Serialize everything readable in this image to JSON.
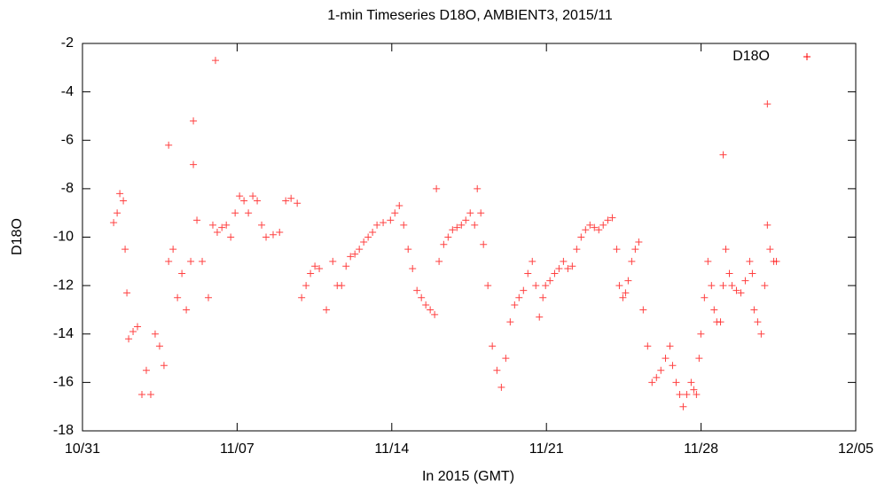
{
  "chart_data": {
    "type": "scatter",
    "title": "1-min Timeseries D18O, AMBIENT3, 2015/11",
    "x_label": "In 2015 (GMT)",
    "y_label": "D18O",
    "xlim": [
      0,
      35
    ],
    "xticks": [
      {
        "value": 0,
        "label": "10/31"
      },
      {
        "value": 7,
        "label": "11/07"
      },
      {
        "value": 14,
        "label": "11/14"
      },
      {
        "value": 21,
        "label": "11/21"
      },
      {
        "value": 28,
        "label": "11/28"
      },
      {
        "value": 35,
        "label": "12/05"
      }
    ],
    "ylim": [
      -18,
      -2
    ],
    "yticks": [
      -18,
      -16,
      -14,
      -12,
      -10,
      -8,
      -6,
      -4,
      -2
    ],
    "grid": false,
    "legend": "top-right",
    "series": [
      {
        "name": "D18O",
        "color": "#ff0000",
        "x": [
          1.41,
          1.57,
          1.69,
          1.85,
          1.93,
          2.01,
          2.09,
          2.29,
          2.49,
          2.69,
          2.89,
          3.09,
          3.29,
          3.49,
          3.69,
          3.9,
          4.1,
          4.3,
          4.5,
          4.7,
          4.9,
          5.02,
          5.18,
          5.42,
          5.7,
          5.9,
          6.1,
          6.31,
          6.51,
          6.71,
          6.91,
          7.11,
          7.31,
          7.51,
          7.71,
          7.91,
          8.11,
          8.31,
          8.63,
          8.92,
          9.2,
          9.44,
          9.72,
          9.92,
          10.12,
          10.32,
          10.52,
          10.72,
          11.04,
          11.33,
          11.53,
          11.73,
          11.93,
          12.13,
          12.33,
          12.53,
          12.73,
          12.93,
          13.13,
          13.33,
          13.61,
          13.94,
          14.14,
          14.34,
          14.54,
          14.74,
          14.94,
          15.14,
          15.34,
          15.54,
          15.74,
          15.94,
          16.14,
          16.35,
          16.55,
          16.75,
          16.95,
          17.15,
          17.35,
          17.55,
          17.75,
          17.87,
          18.03,
          18.15,
          18.35,
          18.55,
          18.76,
          18.96,
          19.16,
          19.36,
          19.56,
          19.76,
          19.96,
          20.16,
          20.36,
          20.52,
          20.68,
          20.84,
          20.96,
          21.16,
          21.37,
          21.57,
          21.77,
          21.97,
          22.17,
          22.37,
          22.57,
          22.77,
          22.97,
          23.17,
          23.37,
          23.57,
          23.78,
          23.98,
          24.18,
          24.3,
          24.46,
          24.58,
          24.7,
          24.86,
          25.02,
          25.18,
          25.38,
          25.58,
          25.78,
          25.98,
          26.18,
          26.39,
          26.59,
          26.71,
          26.87,
          27.03,
          27.19,
          27.35,
          27.55,
          27.67,
          27.79,
          27.91,
          27.99,
          28.15,
          28.31,
          28.47,
          28.59,
          28.71,
          28.88,
          29.0,
          29.12,
          29.28,
          29.4,
          29.6,
          29.8,
          30.0,
          30.2,
          30.32,
          30.4,
          30.56,
          30.72,
          30.88,
          31.0,
          31.12,
          31.29,
          31.41,
          6.02,
          5.02,
          3.9,
          31.0,
          29.0,
          16.02
        ],
        "values": [
          -9.4,
          -9.0,
          -8.2,
          -8.5,
          -10.5,
          -12.3,
          -14.2,
          -13.9,
          -13.7,
          -16.5,
          -15.5,
          -16.5,
          -14.0,
          -14.5,
          -15.3,
          -11.0,
          -10.5,
          -12.5,
          -11.5,
          -13.0,
          -11.0,
          -7.0,
          -9.3,
          -11.0,
          -12.5,
          -9.5,
          -9.8,
          -9.6,
          -9.5,
          -10.0,
          -9.0,
          -8.3,
          -8.5,
          -9.0,
          -8.3,
          -8.5,
          -9.5,
          -10.0,
          -9.9,
          -9.8,
          -8.5,
          -8.4,
          -8.6,
          -12.5,
          -12.0,
          -11.5,
          -11.2,
          -11.3,
          -13.0,
          -11.0,
          -12.0,
          -12.0,
          -11.2,
          -10.8,
          -10.7,
          -10.5,
          -10.2,
          -10.0,
          -9.8,
          -9.5,
          -9.4,
          -9.3,
          -9.0,
          -8.7,
          -9.5,
          -10.5,
          -11.3,
          -12.2,
          -12.5,
          -12.8,
          -13.0,
          -13.2,
          -11.0,
          -10.3,
          -10.0,
          -9.7,
          -9.6,
          -9.5,
          -9.3,
          -9.0,
          -9.5,
          -8.0,
          -9.0,
          -10.3,
          -12.0,
          -14.5,
          -15.5,
          -16.2,
          -15.0,
          -13.5,
          -12.8,
          -12.5,
          -12.2,
          -11.5,
          -11.0,
          -12.0,
          -13.3,
          -12.5,
          -12.0,
          -11.8,
          -11.5,
          -11.3,
          -11.0,
          -11.3,
          -11.2,
          -10.5,
          -10.0,
          -9.7,
          -9.5,
          -9.6,
          -9.7,
          -9.5,
          -9.3,
          -9.2,
          -10.5,
          -12.0,
          -12.5,
          -12.3,
          -11.8,
          -11.0,
          -10.5,
          -10.2,
          -13.0,
          -14.5,
          -16.0,
          -15.8,
          -15.5,
          -15.0,
          -14.5,
          -15.3,
          -16.0,
          -16.5,
          -17.0,
          -16.5,
          -16.0,
          -16.3,
          -16.5,
          -15.0,
          -14.0,
          -12.5,
          -11.0,
          -12.0,
          -13.0,
          -13.5,
          -13.5,
          -12.0,
          -10.5,
          -11.5,
          -12.0,
          -12.2,
          -12.3,
          -11.8,
          -11.0,
          -11.5,
          -13.0,
          -13.5,
          -14.0,
          -12.0,
          -9.5,
          -10.5,
          -11.0,
          -11.0,
          -2.7,
          -5.2,
          -6.2,
          -4.5,
          -6.6,
          -8.0
        ]
      }
    ]
  }
}
